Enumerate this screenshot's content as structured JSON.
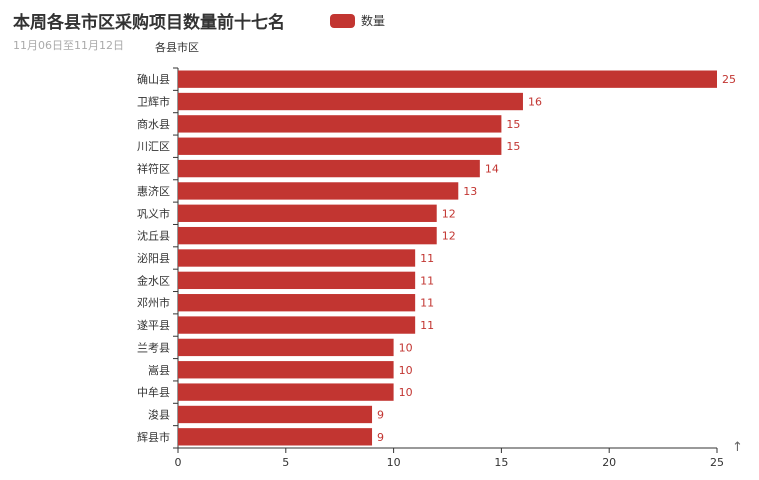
{
  "header": {
    "title": "本周各县市区采购项目数量前十七名",
    "subtitle": "11月06日至11月12日"
  },
  "chart_data": {
    "type": "bar",
    "orientation": "horizontal",
    "title": "本周各县市区采购项目数量前十七名",
    "subtitle": "11月06日至11月12日",
    "ylabel": "各县市区",
    "xlabel": "",
    "categories": [
      "确山县",
      "卫辉市",
      "商水县",
      "川汇区",
      "祥符区",
      "惠济区",
      "巩义市",
      "沈丘县",
      "泌阳县",
      "金水区",
      "邓州市",
      "遂平县",
      "兰考县",
      "嵩县",
      "中牟县",
      "浚县",
      "辉县市"
    ],
    "series": [
      {
        "name": "数量",
        "values": [
          25,
          16,
          15,
          15,
          14,
          13,
          12,
          12,
          11,
          11,
          11,
          11,
          10,
          10,
          10,
          9,
          9
        ],
        "color": "#c23531"
      }
    ],
    "xlim": [
      0,
      25
    ],
    "xticks": [
      0,
      5,
      10,
      15,
      20,
      25
    ],
    "legend": "top",
    "grid": false
  },
  "toolbox": {
    "icon": "back-to-top-icon",
    "glyph": "↑"
  }
}
